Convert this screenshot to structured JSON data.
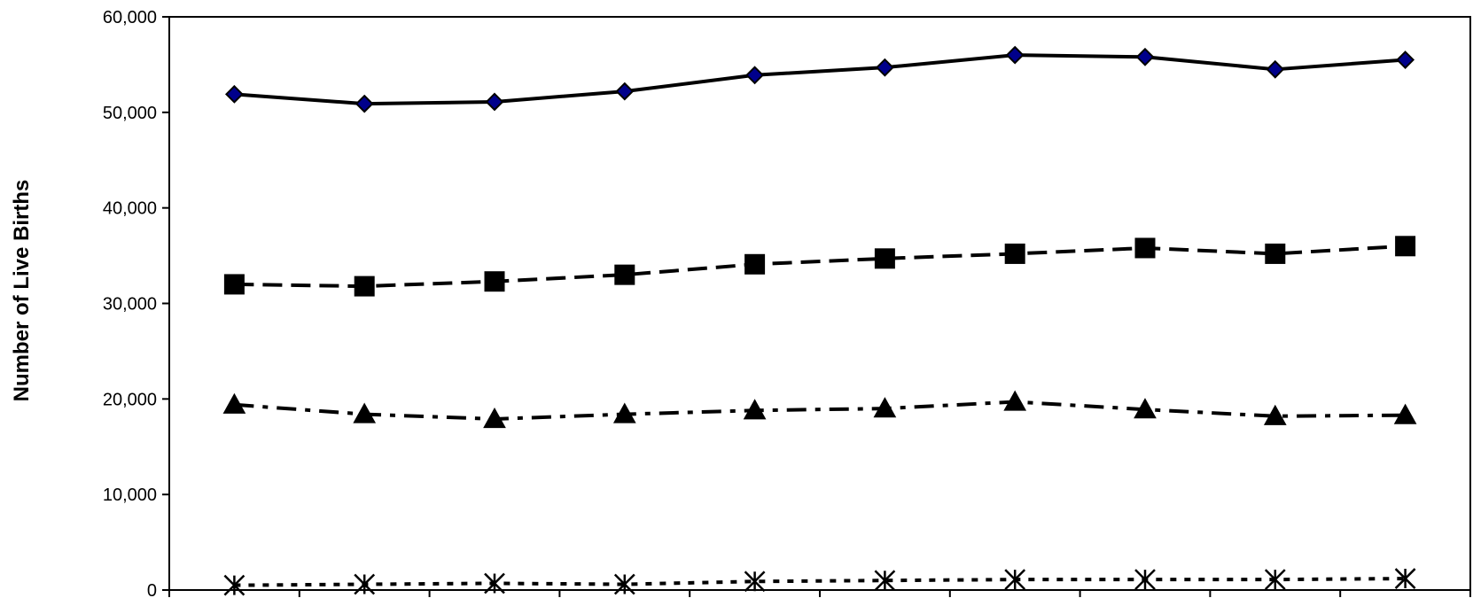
{
  "chart_data": {
    "type": "line",
    "title": "",
    "xlabel": "",
    "ylabel": "Number of Live Births",
    "ylim": [
      0,
      60000
    ],
    "y_ticks": [
      {
        "value": 0,
        "label": "0"
      },
      {
        "value": 10000,
        "label": "10,000"
      },
      {
        "value": 20000,
        "label": "20,000"
      },
      {
        "value": 30000,
        "label": "30,000"
      },
      {
        "value": 40000,
        "label": "40,000"
      },
      {
        "value": 50000,
        "label": "50,000"
      },
      {
        "value": 60000,
        "label": "60,000"
      }
    ],
    "x_count": 10,
    "grid": false,
    "legend": "none",
    "series": [
      {
        "marker": "diamond",
        "line_style": "solid",
        "marker_fill": "#00008B",
        "values": [
          51900,
          50900,
          51100,
          52200,
          53900,
          54700,
          56000,
          55800,
          54500,
          55500
        ]
      },
      {
        "marker": "square",
        "line_style": "dashed",
        "marker_fill": "#000000",
        "values": [
          32000,
          31800,
          32300,
          33000,
          34100,
          34700,
          35200,
          35800,
          35200,
          36000
        ]
      },
      {
        "marker": "triangle",
        "line_style": "dash-dot",
        "marker_fill": "#000000",
        "values": [
          19400,
          18400,
          17900,
          18400,
          18800,
          19000,
          19700,
          18900,
          18200,
          18300
        ]
      },
      {
        "marker": "asterisk",
        "line_style": "dotted",
        "marker_fill": "#000000",
        "values": [
          500,
          600,
          700,
          600,
          900,
          1000,
          1100,
          1100,
          1100,
          1200
        ]
      }
    ]
  }
}
